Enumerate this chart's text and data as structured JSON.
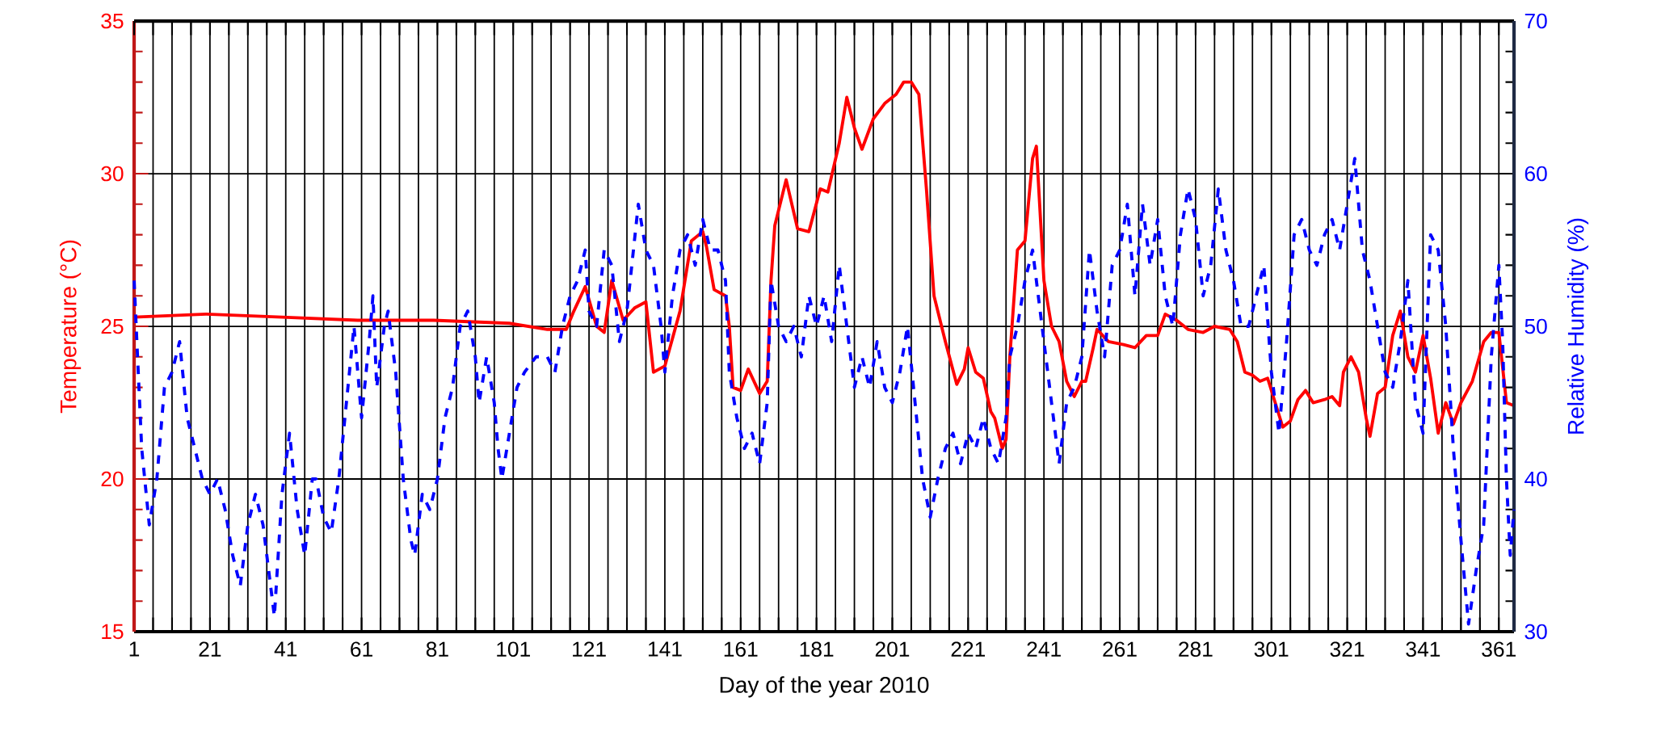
{
  "chart_data": {
    "type": "line",
    "xlabel": "Day of the year 2010",
    "ylabel": "Temperature (°C)",
    "y2label": "Relative Humidity (%)",
    "grid": true,
    "xlim": [
      1,
      365
    ],
    "ylim": [
      15,
      35
    ],
    "y2lim": [
      30,
      70
    ],
    "xticks": [
      1,
      {
        "value": 6,
        "label": null
      },
      {
        "value": 11,
        "label": null
      },
      {
        "value": 16,
        "label": null
      },
      21,
      {
        "value": 26,
        "label": null
      },
      {
        "value": 31,
        "label": null
      },
      {
        "value": 36,
        "label": null
      },
      41,
      {
        "value": 46,
        "label": null
      },
      {
        "value": 51,
        "label": null
      },
      {
        "value": 56,
        "label": null
      },
      61,
      {
        "value": 66,
        "label": null
      },
      {
        "value": 71,
        "label": null
      },
      {
        "value": 76,
        "label": null
      },
      81,
      {
        "value": 86,
        "label": null
      },
      {
        "value": 91,
        "label": null
      },
      {
        "value": 96,
        "label": null
      },
      101,
      {
        "value": 106,
        "label": null
      },
      {
        "value": 111,
        "label": null
      },
      {
        "value": 116,
        "label": null
      },
      121,
      {
        "value": 126,
        "label": null
      },
      {
        "value": 131,
        "label": null
      },
      {
        "value": 136,
        "label": null
      },
      141,
      {
        "value": 146,
        "label": null
      },
      {
        "value": 151,
        "label": null
      },
      {
        "value": 156,
        "label": null
      },
      161,
      {
        "value": 166,
        "label": null
      },
      {
        "value": 171,
        "label": null
      },
      {
        "value": 176,
        "label": null
      },
      181,
      {
        "value": 186,
        "label": null
      },
      {
        "value": 191,
        "label": null
      },
      {
        "value": 196,
        "label": null
      },
      201,
      {
        "value": 206,
        "label": null
      },
      {
        "value": 211,
        "label": null
      },
      {
        "value": 216,
        "label": null
      },
      221,
      {
        "value": 226,
        "label": null
      },
      {
        "value": 231,
        "label": null
      },
      {
        "value": 236,
        "label": null
      },
      241,
      {
        "value": 246,
        "label": null
      },
      {
        "value": 251,
        "label": null
      },
      {
        "value": 256,
        "label": null
      },
      261,
      {
        "value": 266,
        "label": null
      },
      {
        "value": 271,
        "label": null
      },
      {
        "value": 276,
        "label": null
      },
      281,
      {
        "value": 286,
        "label": null
      },
      {
        "value": 291,
        "label": null
      },
      {
        "value": 296,
        "label": null
      },
      301,
      {
        "value": 306,
        "label": null
      },
      {
        "value": 311,
        "label": null
      },
      {
        "value": 316,
        "label": null
      },
      321,
      {
        "value": 326,
        "label": null
      },
      {
        "value": 331,
        "label": null
      },
      {
        "value": 336,
        "label": null
      },
      341,
      {
        "value": 346,
        "label": null
      },
      {
        "value": 351,
        "label": null
      },
      {
        "value": 356,
        "label": null
      },
      361
    ],
    "yticks": [
      15,
      {
        "value": 16,
        "label": null
      },
      {
        "value": 17,
        "label": null
      },
      {
        "value": 18,
        "label": null
      },
      {
        "value": 19,
        "label": null
      },
      20,
      {
        "value": 21,
        "label": null
      },
      {
        "value": 22,
        "label": null
      },
      {
        "value": 23,
        "label": null
      },
      {
        "value": 24,
        "label": null
      },
      25,
      {
        "value": 26,
        "label": null
      },
      {
        "value": 27,
        "label": null
      },
      {
        "value": 28,
        "label": null
      },
      {
        "value": 29,
        "label": null
      },
      30,
      {
        "value": 31,
        "label": null
      },
      {
        "value": 32,
        "label": null
      },
      {
        "value": 33,
        "label": null
      },
      {
        "value": 34,
        "label": null
      },
      35
    ],
    "y2ticks": [
      30,
      {
        "value": 32,
        "label": null
      },
      {
        "value": 34,
        "label": null
      },
      {
        "value": 36,
        "label": null
      },
      {
        "value": 38,
        "label": null
      },
      40,
      {
        "value": 42,
        "label": null
      },
      {
        "value": 44,
        "label": null
      },
      {
        "value": 46,
        "label": null
      },
      {
        "value": 48,
        "label": null
      },
      50,
      {
        "value": 52,
        "label": null
      },
      {
        "value": 54,
        "label": null
      },
      {
        "value": 56,
        "label": null
      },
      {
        "value": 58,
        "label": null
      },
      60,
      {
        "value": 62,
        "label": null
      },
      {
        "value": 64,
        "label": null
      },
      {
        "value": 66,
        "label": null
      },
      {
        "value": 68,
        "label": null
      },
      70
    ],
    "series": [
      {
        "color": "#ff0000",
        "line_style": "solid",
        "x": [
          1,
          20,
          40,
          60,
          80,
          100,
          110,
          115,
          117,
          120,
          123,
          125,
          127,
          130,
          133,
          136,
          138,
          141,
          145,
          148,
          151,
          152,
          154,
          157,
          158,
          159,
          161,
          163,
          166,
          168,
          169,
          170,
          173,
          176,
          179,
          182,
          184,
          187,
          189,
          191,
          193,
          196,
          199,
          202,
          204,
          206,
          208,
          210,
          212,
          215,
          218,
          220,
          221,
          223,
          225,
          227,
          228,
          230,
          231,
          232,
          234,
          236,
          238,
          239,
          241,
          243,
          245,
          247,
          249,
          251,
          252,
          254,
          255,
          258,
          262,
          265,
          268,
          271,
          273,
          276,
          279,
          283,
          286,
          290,
          292,
          294,
          296,
          298,
          300,
          302,
          304,
          306,
          308,
          310,
          312,
          315,
          317,
          319,
          320,
          322,
          324,
          326,
          327,
          329,
          331,
          333,
          335,
          337,
          339,
          341,
          343,
          345,
          347,
          349,
          351,
          354,
          357,
          359,
          361,
          363,
          365
        ],
        "values": [
          25.3,
          25.4,
          25.3,
          25.2,
          25.2,
          25.1,
          24.9,
          24.9,
          25.5,
          26.3,
          25.0,
          24.8,
          26.5,
          25.2,
          25.6,
          25.8,
          23.5,
          23.7,
          25.5,
          27.8,
          28.1,
          27.6,
          26.2,
          26.0,
          25.0,
          23.0,
          22.9,
          23.6,
          22.8,
          23.2,
          26.5,
          28.3,
          29.8,
          28.2,
          28.1,
          29.5,
          29.4,
          31.0,
          32.5,
          31.5,
          30.8,
          31.8,
          32.3,
          32.6,
          33.0,
          33.0,
          32.6,
          29.5,
          26.0,
          24.5,
          23.1,
          23.6,
          24.3,
          23.5,
          23.3,
          22.2,
          22.0,
          21.0,
          21.3,
          24.0,
          27.5,
          27.8,
          30.5,
          30.9,
          26.5,
          25.0,
          24.5,
          23.2,
          22.7,
          23.2,
          23.2,
          24.3,
          24.9,
          24.5,
          24.4,
          24.3,
          24.7,
          24.7,
          25.4,
          25.2,
          24.9,
          24.8,
          25.0,
          24.9,
          24.5,
          23.5,
          23.4,
          23.2,
          23.3,
          22.5,
          21.7,
          21.9,
          22.6,
          22.9,
          22.5,
          22.6,
          22.7,
          22.4,
          23.5,
          24.0,
          23.5,
          22.0,
          21.4,
          22.8,
          23.0,
          24.7,
          25.5,
          24.0,
          23.5,
          24.7,
          23.3,
          21.5,
          22.5,
          21.8,
          22.5,
          23.2,
          24.5,
          24.8,
          24.8,
          22.5,
          22.4
        ]
      },
      {
        "color": "#0000ff",
        "line_style": "dashed",
        "axis": "y2",
        "x": [
          1,
          3,
          5,
          7,
          9,
          11,
          13,
          15,
          17,
          19,
          21,
          23,
          25,
          27,
          29,
          31,
          33,
          35,
          37,
          38,
          40,
          42,
          44,
          46,
          48,
          49,
          51,
          53,
          55,
          57,
          59,
          61,
          63,
          64,
          65,
          67,
          68,
          70,
          72,
          74,
          75,
          77,
          79,
          81,
          83,
          85,
          87,
          89,
          91,
          92,
          94,
          96,
          97,
          98,
          100,
          102,
          104,
          107,
          110,
          112,
          114,
          116,
          118,
          120,
          121,
          123,
          125,
          127,
          129,
          131,
          134,
          136,
          138,
          140,
          141,
          143,
          145,
          147,
          149,
          151,
          153,
          155,
          157,
          158,
          160,
          162,
          164,
          166,
          168,
          169,
          171,
          173,
          175,
          177,
          179,
          181,
          183,
          185,
          187,
          189,
          191,
          193,
          195,
          197,
          199,
          201,
          203,
          205,
          207,
          209,
          211,
          213,
          215,
          217,
          219,
          221,
          223,
          225,
          227,
          229,
          231,
          232,
          234,
          236,
          238,
          239,
          241,
          243,
          245,
          247,
          249,
          251,
          253,
          255,
          257,
          259,
          261,
          263,
          265,
          267,
          269,
          271,
          273,
          275,
          277,
          279,
          281,
          283,
          285,
          287,
          289,
          291,
          293,
          295,
          297,
          299,
          301,
          303,
          305,
          307,
          309,
          311,
          313,
          315,
          317,
          319,
          321,
          323,
          325,
          327,
          329,
          331,
          333,
          335,
          337,
          339,
          341,
          343,
          345,
          347,
          349,
          351,
          353,
          355,
          357,
          359,
          361,
          362,
          363,
          364,
          365
        ],
        "values": [
          53,
          42,
          37,
          40,
          46,
          47,
          49,
          44,
          42,
          40,
          39,
          40,
          38,
          35,
          33,
          37,
          39,
          37,
          33,
          31,
          39,
          43,
          38,
          35,
          40,
          40,
          37.5,
          36.5,
          40,
          45,
          50,
          44,
          49,
          52,
          46,
          50,
          51,
          47,
          40,
          36,
          35,
          39,
          38,
          40,
          44,
          46,
          50,
          51,
          48,
          45,
          48,
          45,
          42,
          40,
          43,
          46,
          47,
          48,
          48,
          47,
          50,
          52,
          53,
          55,
          51,
          50,
          55,
          54,
          49,
          51,
          58,
          55,
          54,
          50,
          47,
          52,
          55,
          56,
          54,
          57,
          55,
          55,
          53,
          47,
          44,
          42,
          43,
          41,
          45,
          53,
          50,
          49,
          50,
          48,
          52,
          50,
          52,
          49,
          54,
          50,
          46,
          48,
          46,
          49,
          46,
          45,
          47,
          50,
          45,
          40,
          37.5,
          40,
          42,
          43,
          41,
          43,
          42,
          44,
          42,
          41,
          44,
          48,
          50,
          53,
          55,
          53,
          49,
          45,
          41,
          45,
          46,
          48,
          55,
          51,
          48,
          54,
          55,
          58,
          52,
          58,
          54,
          57,
          52,
          50,
          56,
          59,
          57,
          52,
          54,
          59,
          55,
          53,
          50,
          50,
          52,
          54,
          47,
          43,
          49,
          56,
          57,
          55,
          54,
          56,
          57,
          55,
          58,
          61,
          55,
          53,
          50,
          47,
          46,
          49,
          53,
          45,
          43,
          56,
          55,
          50,
          42,
          36,
          30.5,
          34,
          37,
          48,
          54,
          49,
          40,
          35,
          38
        ]
      }
    ]
  }
}
